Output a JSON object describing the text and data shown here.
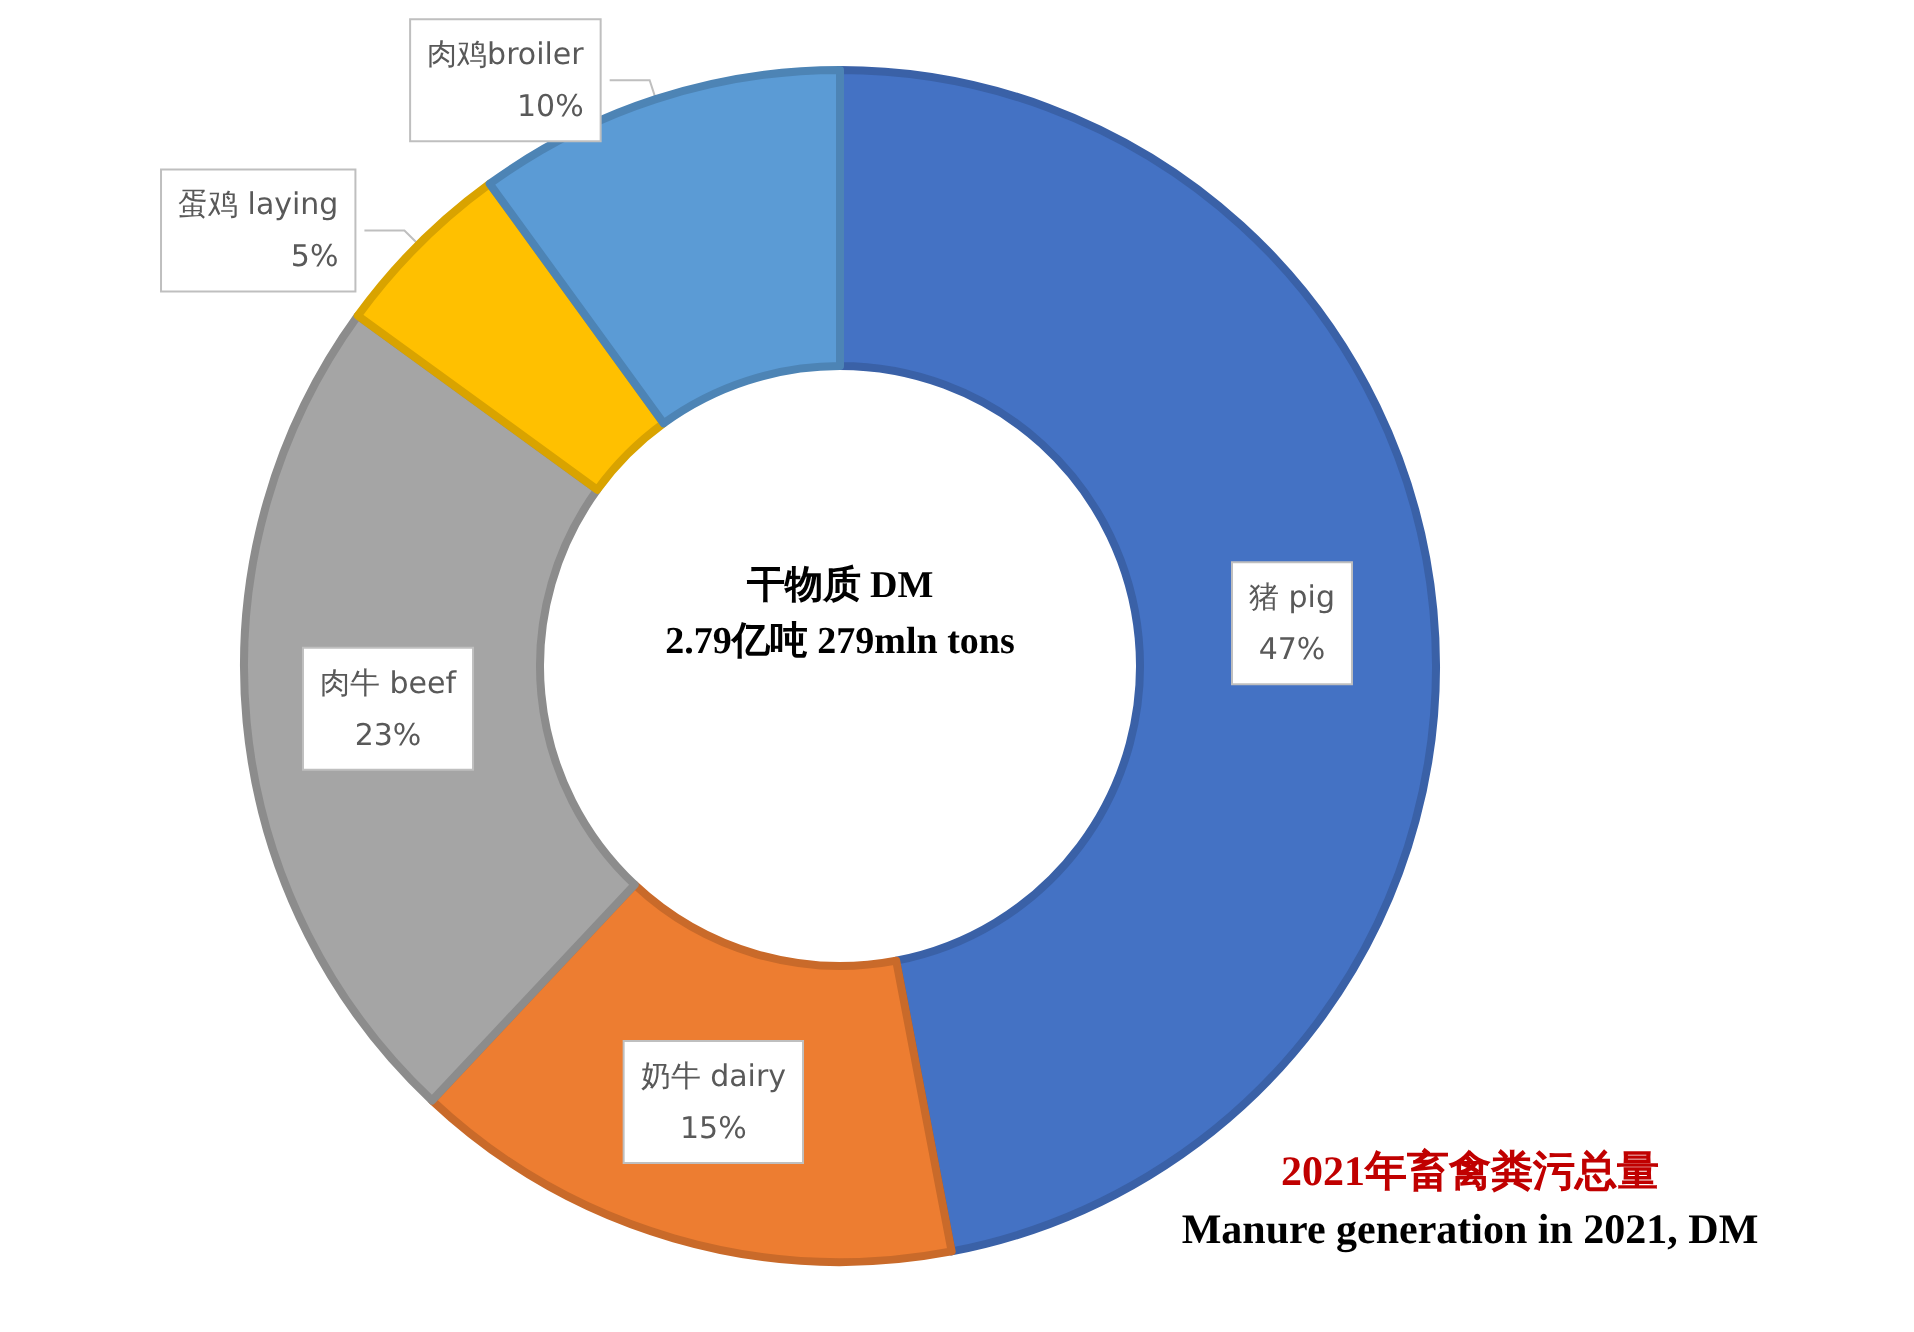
{
  "chart_data": {
    "type": "donut",
    "title": "2021年畜禽粪污总量",
    "subtitle": "Manure generation in 2021, DM",
    "annotations": [
      "干物质 DM",
      "2.79亿吨 279mln tons"
    ],
    "categories": [
      "猪 pig",
      "奶牛 dairy",
      "肉牛 beef",
      "蛋鸡 laying",
      "肉鸡broiler"
    ],
    "values": [
      47,
      15,
      23,
      5,
      10
    ],
    "value_labels": [
      "47%",
      "15%",
      "23%",
      "5%",
      "10%"
    ],
    "colors": [
      "#4472c4",
      "#ed7d31",
      "#a5a5a5",
      "#ffc000",
      "#5b9bd5"
    ],
    "legend": false
  }
}
